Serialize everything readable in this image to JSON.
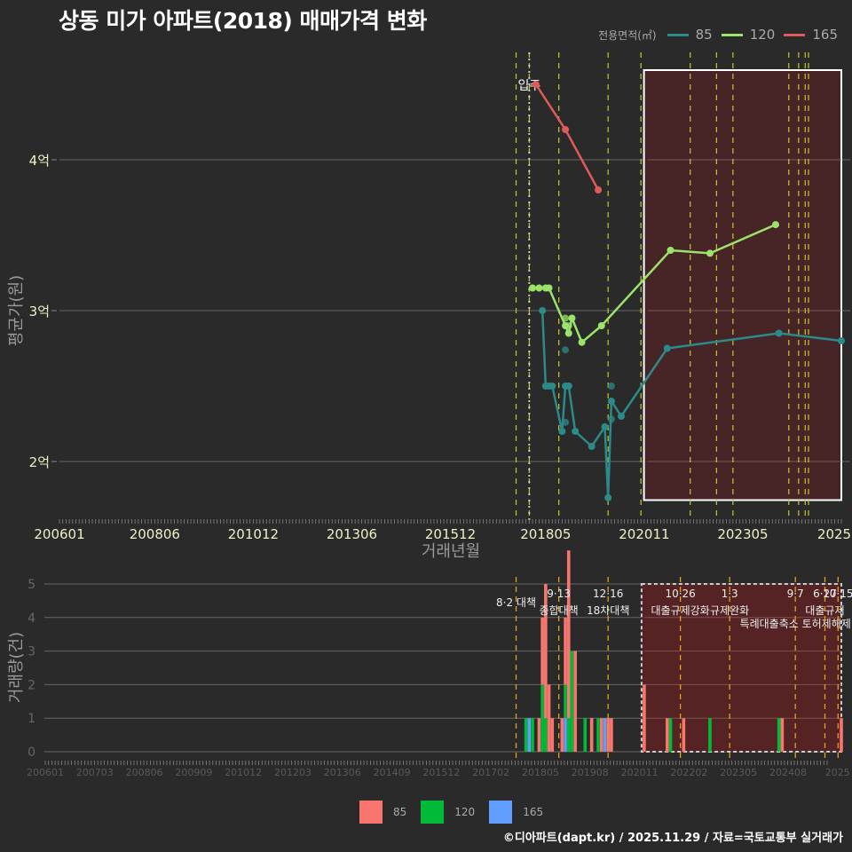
{
  "title": "상동 미가 아파트(2018) 매매가격 변화",
  "legend_top": {
    "title": "전용면적(㎡)",
    "items": [
      {
        "label": "85",
        "color": "#2b8a8a"
      },
      {
        "label": "120",
        "color": "#9be36a"
      },
      {
        "label": "165",
        "color": "#e05a5a"
      }
    ]
  },
  "legend_bottom": {
    "items": [
      {
        "label": "85",
        "color": "#f8766d"
      },
      {
        "label": "120",
        "color": "#00ba38"
      },
      {
        "label": "165",
        "color": "#619cff"
      }
    ]
  },
  "footer": "©디아파트(dapt.kr) / 2025.11.29 / 자료=국토교통부 실거래가",
  "chart_data": [
    {
      "type": "line",
      "title": "상동 미가 아파트(2018) 매매가격 변화",
      "xlabel": "거래년월",
      "ylabel": "평균가(원)",
      "x_tick_labels": [
        "200601",
        "200806",
        "201012",
        "201306",
        "201512",
        "201805",
        "202011",
        "202305",
        "2025"
      ],
      "y_tick_labels": [
        "2억",
        "3억",
        "4억"
      ],
      "y_ticks": [
        2.0,
        3.0,
        4.0
      ],
      "ylim": [
        1.65,
        4.6
      ],
      "annotation": "입주",
      "move_in": "201712",
      "policy_lines": [
        "201708",
        "201809",
        "201912",
        "201712",
        "202010",
        "202201",
        "202209",
        "202302",
        "202407",
        "202410",
        "202412",
        "202501"
      ],
      "highlight_box": {
        "from": "202012",
        "to": "202511",
        "y_from": 1.75,
        "y_to": 4.6
      },
      "series": [
        {
          "name": "85",
          "color": "#2b8a8a",
          "points": [
            [
              "201804",
              3.0
            ],
            [
              "201805",
              2.5
            ],
            [
              "201806",
              2.5
            ],
            [
              "201807",
              2.5
            ],
            [
              "201810",
              2.2
            ],
            [
              "201811",
              2.5
            ],
            [
              "201812",
              2.5
            ],
            [
              "201902",
              2.2
            ],
            [
              "201907",
              2.1
            ],
            [
              "201911",
              2.23
            ],
            [
              "201912",
              1.76
            ],
            [
              "202001",
              2.4
            ],
            [
              "202004",
              2.3
            ],
            [
              "202106",
              2.75
            ],
            [
              "202404",
              2.85
            ],
            [
              "202511",
              2.8
            ]
          ],
          "extra_points": [
            [
              "201811",
              2.74
            ],
            [
              "201811",
              2.26
            ],
            [
              "202001",
              2.5
            ],
            [
              "202001",
              2.28
            ]
          ]
        },
        {
          "name": "120",
          "color": "#9be36a",
          "points": [
            [
              "201801",
              3.15
            ],
            [
              "201803",
              3.15
            ],
            [
              "201805",
              3.15
            ],
            [
              "201806",
              3.15
            ],
            [
              "201811",
              2.9
            ],
            [
              "201812",
              2.85
            ],
            [
              "201901",
              2.95
            ],
            [
              "201904",
              2.79
            ],
            [
              "201910",
              2.9
            ],
            [
              "202107",
              3.4
            ],
            [
              "202207",
              3.38
            ],
            [
              "202403",
              3.57
            ]
          ],
          "extra_points": [
            [
              "201811",
              2.95
            ],
            [
              "201812",
              2.9
            ]
          ]
        },
        {
          "name": "165",
          "color": "#e05a5a",
          "points": [
            [
              "201802",
              4.5
            ],
            [
              "201811",
              4.2
            ],
            [
              "201909",
              3.8
            ]
          ]
        }
      ]
    },
    {
      "type": "bar",
      "stacked": true,
      "xlabel": "",
      "ylabel": "거래량(건)",
      "y_ticks": [
        0,
        1,
        2,
        3,
        4,
        5
      ],
      "ylim": [
        0,
        5
      ],
      "x_tick_labels": [
        "200601",
        "200703",
        "200806",
        "200909",
        "201012",
        "201203",
        "201306",
        "201409",
        "201512",
        "201702",
        "201805",
        "201908",
        "202011",
        "202202",
        "202305",
        "202408",
        "2025"
      ],
      "policy_annotations": [
        {
          "date": "201708",
          "label1": "",
          "label2": "8·2 대책"
        },
        {
          "date": "201809",
          "label1": "9·13",
          "label2": "종합대책"
        },
        {
          "date": "201912",
          "label1": "12·16",
          "label2": "18차대책"
        },
        {
          "date": "202110",
          "label1": "10·26",
          "label2": "대출규제강화"
        },
        {
          "date": "202301",
          "label1": "1·3",
          "label2": "규제완화"
        },
        {
          "date": "202409",
          "label1": "9·7",
          "label2": "특례대출축소 토허제해제"
        },
        {
          "date": "202506",
          "label1": "6·27",
          "label2": "대출규제"
        },
        {
          "date": "202510",
          "label1": "10·15",
          "label2": ""
        }
      ],
      "bars": [
        {
          "month": "201711",
          "85": 0,
          "120": 1,
          "165": 0
        },
        {
          "month": "201712",
          "85": 0,
          "120": 0,
          "165": 1
        },
        {
          "month": "201801",
          "85": 0,
          "120": 1,
          "165": 0
        },
        {
          "month": "201803",
          "85": 1,
          "120": 0,
          "165": 0
        },
        {
          "month": "201804",
          "85": 2,
          "120": 2,
          "165": 0
        },
        {
          "month": "201805",
          "85": 4,
          "120": 1,
          "165": 0
        },
        {
          "month": "201806",
          "85": 2,
          "120": 0,
          "165": 0
        },
        {
          "month": "201807",
          "85": 1,
          "120": 0,
          "165": 0
        },
        {
          "month": "201810",
          "85": 1,
          "120": 0,
          "165": 0
        },
        {
          "month": "201811",
          "85": 2,
          "120": 1,
          "165": 1
        },
        {
          "month": "201812",
          "85": 5,
          "120": 1,
          "165": 0
        },
        {
          "month": "201901",
          "85": 0,
          "120": 3,
          "165": 0
        },
        {
          "month": "201902",
          "85": 3,
          "120": 0,
          "165": 0
        },
        {
          "month": "201905",
          "85": 0,
          "120": 1,
          "165": 0
        },
        {
          "month": "201907",
          "85": 1,
          "120": 0,
          "165": 0
        },
        {
          "month": "201909",
          "85": 0,
          "120": 1,
          "165": 0
        },
        {
          "month": "201910",
          "85": 1,
          "120": 0,
          "165": 0
        },
        {
          "month": "201911",
          "85": 0,
          "120": 0,
          "165": 1
        },
        {
          "month": "201912",
          "85": 1,
          "120": 0,
          "165": 0
        },
        {
          "month": "202001",
          "85": 1,
          "120": 0,
          "165": 0
        },
        {
          "month": "202011",
          "85": 2,
          "120": 0,
          "165": 0
        },
        {
          "month": "202106",
          "85": 1,
          "120": 0,
          "165": 0
        },
        {
          "month": "202107",
          "85": 0,
          "120": 1,
          "165": 0
        },
        {
          "month": "202111",
          "85": 1,
          "120": 0,
          "165": 0
        },
        {
          "month": "202207",
          "85": 0,
          "120": 1,
          "165": 0
        },
        {
          "month": "202404",
          "85": 0,
          "120": 1,
          "165": 0
        },
        {
          "month": "202405",
          "85": 1,
          "120": 0,
          "165": 0
        },
        {
          "month": "202511",
          "85": 1,
          "120": 0,
          "165": 0
        }
      ]
    }
  ]
}
